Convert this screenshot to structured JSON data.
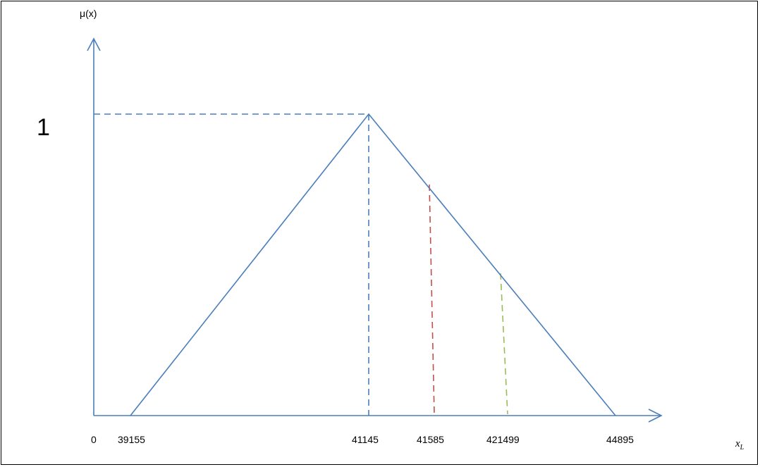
{
  "chart_data": {
    "type": "line",
    "title": "",
    "ylabel": "μ(x)",
    "xlabel": "x",
    "xlabel_subscript": "L",
    "y_peak_label": "1",
    "tick_labels": [
      "0",
      "39155",
      "41145",
      "41585",
      "421499",
      "44895"
    ],
    "series": [
      {
        "role": "membership-function",
        "x": [
          39155,
          41145,
          44895
        ],
        "y": [
          0,
          1,
          0
        ],
        "color": "#4a7ebb",
        "style": "solid"
      }
    ],
    "reference_lines": [
      {
        "role": "peak-horizontal",
        "y": 1,
        "color": "#4a7ebb",
        "style": "dashed"
      },
      {
        "role": "peak-vertical",
        "x": 41145,
        "color": "#4a7ebb",
        "style": "dashed"
      },
      {
        "role": "red-cut",
        "x": 41585,
        "color": "#c0504d",
        "style": "dashed"
      },
      {
        "role": "green-cut",
        "x": 421499,
        "color": "#9bbb59",
        "style": "dashed"
      }
    ],
    "grid": false,
    "legend": "none"
  }
}
